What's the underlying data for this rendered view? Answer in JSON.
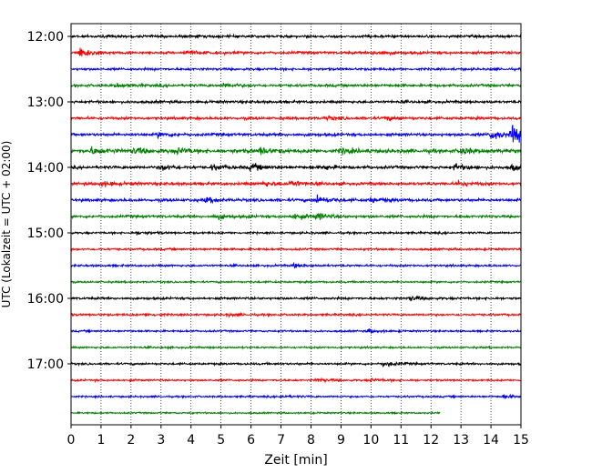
{
  "chart_data": {
    "type": "line",
    "xlabel": "Zeit  [min]",
    "ylabel": "UTC (Lokalzeit = UTC + 02:00)",
    "xlim": [
      0,
      15
    ],
    "x_ticks": [
      0,
      1,
      2,
      3,
      4,
      5,
      6,
      7,
      8,
      9,
      10,
      11,
      12,
      13,
      14,
      15
    ],
    "x_tick_labels": [
      "0",
      "1",
      "2",
      "3",
      "4",
      "5",
      "6",
      "7",
      "8",
      "9",
      "10",
      "11",
      "12",
      "13",
      "14",
      "15"
    ],
    "y_tick_labels": [
      "12:00",
      "13:00",
      "14:00",
      "15:00",
      "16:00",
      "17:00"
    ],
    "x_grid": "dotted",
    "trace_interval_minutes": 15,
    "color_cycle": [
      "#000000",
      "#ff0000",
      "#0000ff",
      "#008000"
    ],
    "traces": [
      {
        "start": "12:00",
        "color": "#000000",
        "noise": 0.5,
        "events": []
      },
      {
        "start": "12:15",
        "color": "#ff0000",
        "noise": 0.5,
        "events": [
          [
            0.3,
            2.0
          ],
          [
            3.8,
            0.9
          ],
          [
            10.1,
            0.9
          ]
        ]
      },
      {
        "start": "12:30",
        "color": "#0000ff",
        "noise": 0.45,
        "events": []
      },
      {
        "start": "12:45",
        "color": "#008000",
        "noise": 0.5,
        "events": [
          [
            1.5,
            0.7
          ],
          [
            5.1,
            0.9
          ]
        ]
      },
      {
        "start": "13:00",
        "color": "#000000",
        "noise": 0.5,
        "events": []
      },
      {
        "start": "13:15",
        "color": "#ff0000",
        "noise": 0.5,
        "events": [
          [
            8.5,
            0.7
          ],
          [
            10.5,
            0.7
          ]
        ]
      },
      {
        "start": "13:30",
        "color": "#0000ff",
        "noise": 0.55,
        "events": [
          [
            2.9,
            0.9
          ],
          [
            14.0,
            2.3
          ],
          [
            14.7,
            3.5
          ]
        ]
      },
      {
        "start": "13:45",
        "color": "#008000",
        "noise": 0.75,
        "events": [
          [
            0.7,
            1.3
          ],
          [
            2.1,
            1.1
          ],
          [
            3.5,
            1.1
          ],
          [
            6.3,
            1.2
          ],
          [
            9.0,
            0.8
          ],
          [
            13.0,
            1.1
          ]
        ]
      },
      {
        "start": "14:00",
        "color": "#000000",
        "noise": 0.55,
        "events": [
          [
            3.0,
            1.2
          ],
          [
            4.7,
            0.9
          ],
          [
            6.0,
            1.3
          ],
          [
            8.4,
            0.9
          ],
          [
            12.8,
            1.2
          ],
          [
            14.7,
            1.2
          ]
        ]
      },
      {
        "start": "14:15",
        "color": "#ff0000",
        "noise": 0.55,
        "events": [
          [
            1.0,
            1.0
          ],
          [
            6.4,
            1.0
          ],
          [
            7.3,
            1.1
          ],
          [
            12.9,
            0.9
          ]
        ]
      },
      {
        "start": "14:30",
        "color": "#0000ff",
        "noise": 0.55,
        "events": [
          [
            4.5,
            0.9
          ],
          [
            8.2,
            1.7
          ],
          [
            10.0,
            0.9
          ]
        ]
      },
      {
        "start": "14:45",
        "color": "#008000",
        "noise": 0.5,
        "events": [
          [
            4.8,
            1.0
          ],
          [
            7.4,
            1.2
          ],
          [
            8.2,
            1.2
          ]
        ]
      },
      {
        "start": "15:00",
        "color": "#000000",
        "noise": 0.4,
        "events": [
          [
            2.2,
            0.6
          ]
        ]
      },
      {
        "start": "15:15",
        "color": "#ff0000",
        "noise": 0.4,
        "events": []
      },
      {
        "start": "15:30",
        "color": "#0000ff",
        "noise": 0.4,
        "events": [
          [
            7.4,
            0.7
          ]
        ]
      },
      {
        "start": "15:45",
        "color": "#008000",
        "noise": 0.35,
        "events": []
      },
      {
        "start": "16:00",
        "color": "#000000",
        "noise": 0.45,
        "events": [
          [
            11.3,
            0.8
          ]
        ]
      },
      {
        "start": "16:15",
        "color": "#ff0000",
        "noise": 0.4,
        "events": [
          [
            2.5,
            0.5
          ],
          [
            5.2,
            0.5
          ]
        ]
      },
      {
        "start": "16:30",
        "color": "#0000ff",
        "noise": 0.35,
        "events": [
          [
            9.9,
            0.7
          ]
        ]
      },
      {
        "start": "16:45",
        "color": "#008000",
        "noise": 0.35,
        "events": []
      },
      {
        "start": "17:00",
        "color": "#000000",
        "noise": 0.4,
        "events": [
          [
            10.4,
            1.1
          ]
        ]
      },
      {
        "start": "17:15",
        "color": "#ff0000",
        "noise": 0.35,
        "events": [
          [
            8.2,
            0.8
          ],
          [
            10.0,
            0.6
          ]
        ]
      },
      {
        "start": "17:30",
        "color": "#0000ff",
        "noise": 0.35,
        "events": [
          [
            7.0,
            0.5
          ],
          [
            14.4,
            0.6
          ]
        ]
      },
      {
        "start": "17:45",
        "color": "#008000",
        "noise": 0.3,
        "events": [],
        "end_minute": 12.3
      }
    ]
  }
}
